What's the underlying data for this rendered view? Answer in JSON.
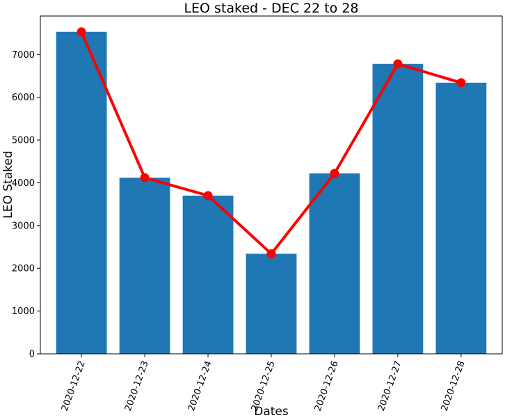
{
  "chart_data": {
    "type": "bar",
    "title": "LEO staked - DEC 22 to 28",
    "xlabel": "Dates",
    "ylabel": "LEO Staked",
    "categories": [
      "2020-12-22",
      "2020-12-23",
      "2020-12-24",
      "2020-12-25",
      "2020-12-26",
      "2020-12-27",
      "2020-12-28"
    ],
    "values": [
      7530,
      4120,
      3700,
      2340,
      4220,
      6780,
      6340
    ],
    "overlay_line": {
      "type": "line",
      "values": [
        7530,
        4120,
        3700,
        2340,
        4220,
        6780,
        6340
      ],
      "color": "#ff0000",
      "marker": "circle"
    },
    "bar_color": "#1f77b4",
    "ylim": [
      0,
      7900
    ],
    "yticks": [
      0,
      1000,
      2000,
      3000,
      4000,
      5000,
      6000,
      7000
    ],
    "grid": false,
    "legend": "none"
  }
}
